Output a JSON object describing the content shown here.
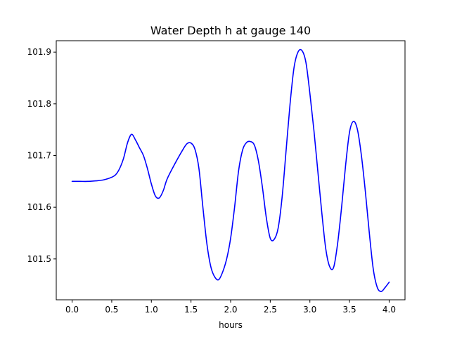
{
  "chart_data": {
    "type": "line",
    "title": "Water Depth h at gauge 140",
    "xlabel": "hours",
    "ylabel": "",
    "xlim": [
      -0.2,
      4.2
    ],
    "ylim": [
      101.421,
      101.922
    ],
    "xticks": [
      0.0,
      0.5,
      1.0,
      1.5,
      2.0,
      2.5,
      3.0,
      3.5,
      4.0
    ],
    "xtick_labels": [
      "0.0",
      "0.5",
      "1.0",
      "1.5",
      "2.0",
      "2.5",
      "3.0",
      "3.5",
      "4.0"
    ],
    "yticks": [
      101.5,
      101.6,
      101.7,
      101.8,
      101.9
    ],
    "ytick_labels": [
      "101.5",
      "101.6",
      "101.7",
      "101.8",
      "101.9"
    ],
    "grid": false,
    "series": [
      {
        "name": "",
        "color": "#0000ff",
        "x": [
          0.0,
          0.1,
          0.2,
          0.3,
          0.4,
          0.5,
          0.55,
          0.6,
          0.65,
          0.7,
          0.75,
          0.8,
          0.85,
          0.9,
          0.95,
          1.0,
          1.05,
          1.1,
          1.15,
          1.2,
          1.3,
          1.4,
          1.45,
          1.5,
          1.55,
          1.6,
          1.65,
          1.7,
          1.75,
          1.8,
          1.85,
          1.9,
          1.95,
          2.0,
          2.05,
          2.1,
          2.15,
          2.2,
          2.25,
          2.3,
          2.35,
          2.4,
          2.45,
          2.5,
          2.55,
          2.6,
          2.65,
          2.7,
          2.75,
          2.8,
          2.85,
          2.9,
          2.95,
          3.0,
          3.05,
          3.1,
          3.15,
          3.2,
          3.25,
          3.3,
          3.35,
          3.4,
          3.45,
          3.5,
          3.55,
          3.6,
          3.65,
          3.7,
          3.75,
          3.8,
          3.85,
          3.9,
          3.95,
          4.0
        ],
        "y": [
          101.65,
          101.65,
          101.65,
          101.651,
          101.653,
          101.658,
          101.663,
          101.675,
          101.695,
          101.725,
          101.741,
          101.73,
          101.715,
          101.7,
          101.675,
          101.645,
          101.622,
          101.618,
          101.632,
          101.655,
          101.685,
          101.712,
          101.723,
          101.724,
          101.712,
          101.675,
          101.6,
          101.53,
          101.485,
          101.465,
          101.46,
          101.475,
          101.5,
          101.54,
          101.6,
          101.67,
          101.71,
          101.725,
          101.727,
          101.72,
          101.69,
          101.64,
          101.58,
          101.54,
          101.538,
          101.56,
          101.62,
          101.71,
          101.8,
          101.87,
          101.9,
          101.903,
          101.88,
          101.82,
          101.75,
          101.67,
          101.59,
          101.52,
          101.485,
          101.484,
          101.53,
          101.6,
          101.68,
          101.745,
          101.766,
          101.75,
          101.7,
          101.63,
          101.55,
          101.48,
          101.445,
          101.437,
          101.445,
          101.455
        ]
      }
    ]
  }
}
